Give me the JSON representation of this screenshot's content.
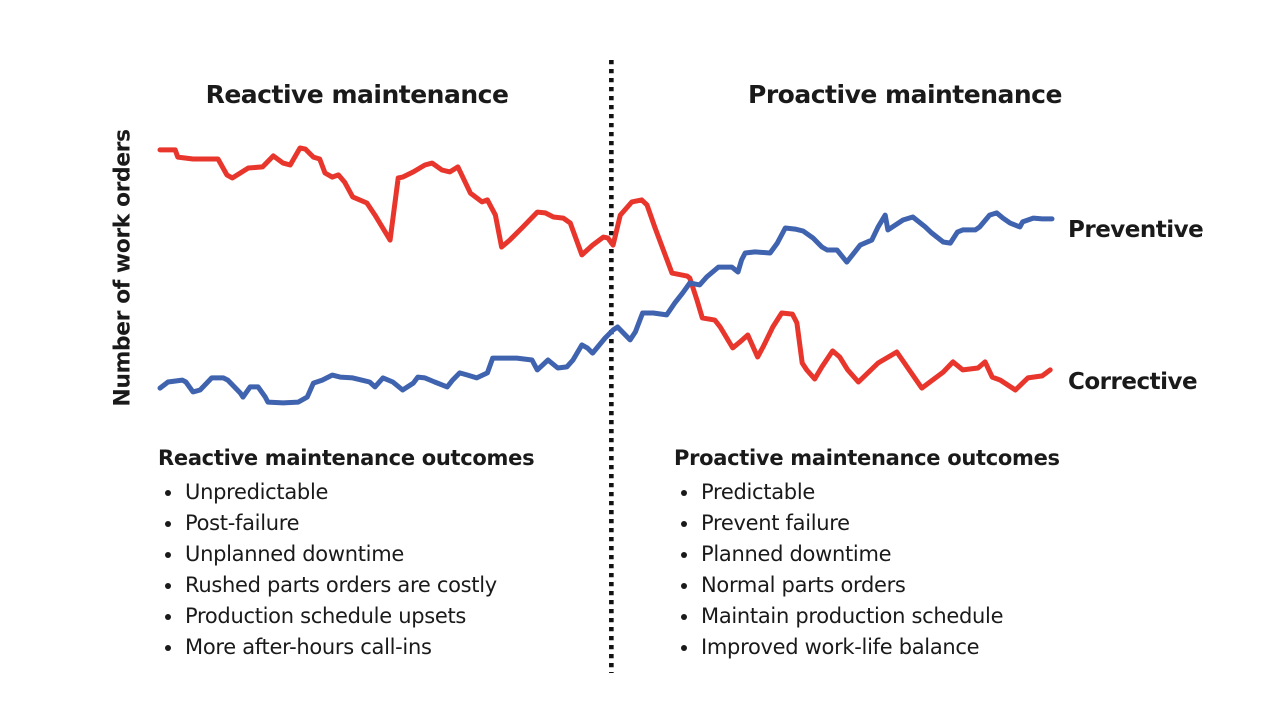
{
  "page": {
    "background": "#ffffff",
    "text_color": "#1a1a1a"
  },
  "header": {
    "left_phase": "Reactive maintenance",
    "right_phase": "Proactive maintenance"
  },
  "y_axis_label": "Number of work orders",
  "series_labels": {
    "preventive": "Preventive",
    "corrective": "Corrective"
  },
  "colors": {
    "corrective_red": "#e8362d",
    "preventive_blue": "#3f63ae",
    "divider_dots": "#111111"
  },
  "lists": {
    "left": {
      "heading": "Reactive maintenance outcomes",
      "items": [
        "Unpredictable",
        "Post-failure",
        "Unplanned downtime",
        "Rushed parts orders are costly",
        "Production schedule upsets",
        "More after-hours call-ins"
      ]
    },
    "right": {
      "heading": "Proactive maintenance outcomes",
      "items": [
        "Predictable",
        "Prevent failure",
        "Planned downtime",
        "Normal parts orders",
        "Maintain production schedule",
        "Improved work-life balance"
      ]
    }
  },
  "chart_data": {
    "type": "line",
    "title": "",
    "xlabel": "",
    "ylabel": "Number of work orders",
    "x_range": [
      0,
      100
    ],
    "y_range": [
      0,
      100
    ],
    "grid": false,
    "axes_visible": false,
    "legend_position": "right-inline",
    "divider": {
      "x": 50.6,
      "style": "dotted",
      "label_left": "Reactive maintenance",
      "label_right": "Proactive maintenance"
    },
    "series": [
      {
        "name": "Corrective",
        "color": "#e8362d",
        "points": [
          [
            0,
            96.4
          ],
          [
            1.7,
            96.4
          ],
          [
            2.0,
            93.8
          ],
          [
            3.7,
            93.1
          ],
          [
            6.5,
            93.1
          ],
          [
            7.5,
            87.3
          ],
          [
            8.1,
            86.2
          ],
          [
            9.9,
            89.8
          ],
          [
            11.5,
            90.2
          ],
          [
            12.7,
            94.2
          ],
          [
            13.8,
            91.6
          ],
          [
            14.6,
            90.9
          ],
          [
            15.7,
            97.1
          ],
          [
            16.3,
            96.7
          ],
          [
            17.2,
            93.8
          ],
          [
            17.9,
            93.1
          ],
          [
            18.5,
            88.0
          ],
          [
            19.3,
            86.5
          ],
          [
            20.0,
            87.3
          ],
          [
            20.7,
            84.7
          ],
          [
            21.6,
            79.3
          ],
          [
            23.2,
            77.1
          ],
          [
            24.1,
            72.7
          ],
          [
            25.8,
            63.6
          ],
          [
            26.7,
            86.2
          ],
          [
            27.2,
            86.5
          ],
          [
            28.4,
            88.4
          ],
          [
            29.7,
            90.9
          ],
          [
            30.5,
            91.6
          ],
          [
            31.6,
            89.1
          ],
          [
            32.5,
            88.4
          ],
          [
            33.4,
            90.2
          ],
          [
            34.8,
            80.7
          ],
          [
            36.1,
            77.5
          ],
          [
            36.7,
            78.2
          ],
          [
            37.6,
            72.7
          ],
          [
            38.3,
            61.1
          ],
          [
            39.2,
            63.6
          ],
          [
            40.7,
            68.4
          ],
          [
            42.3,
            73.8
          ],
          [
            43.2,
            73.5
          ],
          [
            44.1,
            72.0
          ],
          [
            45.2,
            71.6
          ],
          [
            46.0,
            69.8
          ],
          [
            47.3,
            58.2
          ],
          [
            48.5,
            61.8
          ],
          [
            49.7,
            64.7
          ],
          [
            50.2,
            64.4
          ],
          [
            50.8,
            61.8
          ],
          [
            51.6,
            72.7
          ],
          [
            52.9,
            77.5
          ],
          [
            54.0,
            78.2
          ],
          [
            54.6,
            76.4
          ],
          [
            55.5,
            68.0
          ],
          [
            56.3,
            61.1
          ],
          [
            57.4,
            51.6
          ],
          [
            59.1,
            50.5
          ],
          [
            59.4,
            49.8
          ],
          [
            60.2,
            41.8
          ],
          [
            60.8,
            35.3
          ],
          [
            62.2,
            34.5
          ],
          [
            62.8,
            32.0
          ],
          [
            64.2,
            24.4
          ],
          [
            65.0,
            26.5
          ],
          [
            65.9,
            29.1
          ],
          [
            66.5,
            24.7
          ],
          [
            67.0,
            21.1
          ],
          [
            67.6,
            24.7
          ],
          [
            68.7,
            32.0
          ],
          [
            69.7,
            37.1
          ],
          [
            70.9,
            36.7
          ],
          [
            71.4,
            33.5
          ],
          [
            72.0,
            18.9
          ],
          [
            72.5,
            16.4
          ],
          [
            73.4,
            13.1
          ],
          [
            74.2,
            17.5
          ],
          [
            75.4,
            23.3
          ],
          [
            76.2,
            21.1
          ],
          [
            77.1,
            16.4
          ],
          [
            78.3,
            12.0
          ],
          [
            80.5,
            18.9
          ],
          [
            82.6,
            22.9
          ],
          [
            85.4,
            9.8
          ],
          [
            87.8,
            15.6
          ],
          [
            88.9,
            19.3
          ],
          [
            90.0,
            16.4
          ],
          [
            91.7,
            17.1
          ],
          [
            92.5,
            19.3
          ],
          [
            93.3,
            13.8
          ],
          [
            94.2,
            12.7
          ],
          [
            95.9,
            9.1
          ],
          [
            97.3,
            13.5
          ],
          [
            98.9,
            14.2
          ],
          [
            99.8,
            16.4
          ]
        ]
      },
      {
        "name": "Preventive",
        "color": "#3f63ae",
        "points": [
          [
            0,
            9.8
          ],
          [
            0.9,
            12.0
          ],
          [
            2.5,
            12.7
          ],
          [
            2.9,
            12.0
          ],
          [
            3.7,
            8.4
          ],
          [
            4.5,
            9.1
          ],
          [
            5.8,
            13.5
          ],
          [
            7.1,
            13.5
          ],
          [
            7.6,
            12.7
          ],
          [
            9.0,
            8.0
          ],
          [
            9.3,
            6.5
          ],
          [
            10.1,
            10.2
          ],
          [
            11.0,
            10.2
          ],
          [
            11.8,
            6.5
          ],
          [
            12.1,
            4.7
          ],
          [
            13.8,
            4.4
          ],
          [
            15.5,
            4.7
          ],
          [
            16.5,
            6.5
          ],
          [
            17.2,
            11.6
          ],
          [
            18.2,
            12.7
          ],
          [
            19.3,
            14.5
          ],
          [
            20.2,
            13.8
          ],
          [
            21.6,
            13.5
          ],
          [
            22.6,
            12.7
          ],
          [
            23.5,
            12.0
          ],
          [
            24.1,
            10.2
          ],
          [
            25.0,
            13.5
          ],
          [
            26.1,
            12.0
          ],
          [
            27.2,
            9.1
          ],
          [
            28.4,
            11.6
          ],
          [
            28.9,
            13.8
          ],
          [
            29.7,
            13.5
          ],
          [
            30.8,
            12.0
          ],
          [
            32.2,
            10.2
          ],
          [
            32.8,
            12.7
          ],
          [
            33.6,
            15.3
          ],
          [
            34.5,
            14.5
          ],
          [
            35.5,
            13.5
          ],
          [
            36.7,
            15.3
          ],
          [
            37.3,
            20.7
          ],
          [
            40.0,
            20.7
          ],
          [
            41.7,
            20.0
          ],
          [
            42.3,
            16.4
          ],
          [
            42.9,
            18.2
          ],
          [
            43.5,
            20.0
          ],
          [
            44.6,
            17.1
          ],
          [
            45.6,
            17.5
          ],
          [
            46.3,
            20.0
          ],
          [
            47.3,
            25.5
          ],
          [
            47.9,
            24.4
          ],
          [
            48.5,
            22.5
          ],
          [
            49.9,
            28.0
          ],
          [
            50.8,
            30.9
          ],
          [
            51.3,
            32.0
          ],
          [
            52.7,
            27.3
          ],
          [
            53.3,
            30.2
          ],
          [
            54.1,
            37.1
          ],
          [
            55.3,
            37.1
          ],
          [
            56.8,
            36.4
          ],
          [
            57.7,
            40.7
          ],
          [
            58.6,
            44.4
          ],
          [
            59.4,
            48.0
          ],
          [
            60.5,
            47.3
          ],
          [
            61.3,
            50.2
          ],
          [
            62.6,
            53.8
          ],
          [
            64.1,
            53.8
          ],
          [
            64.8,
            52.0
          ],
          [
            65.2,
            56.4
          ],
          [
            65.6,
            58.9
          ],
          [
            66.7,
            59.3
          ],
          [
            68.4,
            58.9
          ],
          [
            69.2,
            62.5
          ],
          [
            70.1,
            68.0
          ],
          [
            71.2,
            67.6
          ],
          [
            72.1,
            66.9
          ],
          [
            73.2,
            64.4
          ],
          [
            74.2,
            61.1
          ],
          [
            74.8,
            60.0
          ],
          [
            75.9,
            60.0
          ],
          [
            77.0,
            55.6
          ],
          [
            78.5,
            61.8
          ],
          [
            79.8,
            63.6
          ],
          [
            80.5,
            68.4
          ],
          [
            81.3,
            72.7
          ],
          [
            81.6,
            67.3
          ],
          [
            83.3,
            70.9
          ],
          [
            84.4,
            72.0
          ],
          [
            85.8,
            68.4
          ],
          [
            86.5,
            66.2
          ],
          [
            87.8,
            62.9
          ],
          [
            88.6,
            62.5
          ],
          [
            89.4,
            66.5
          ],
          [
            90.0,
            67.3
          ],
          [
            91.4,
            67.3
          ],
          [
            91.9,
            68.4
          ],
          [
            93.0,
            72.7
          ],
          [
            93.8,
            73.5
          ],
          [
            94.5,
            71.6
          ],
          [
            95.3,
            69.8
          ],
          [
            96.4,
            68.4
          ],
          [
            96.7,
            70.2
          ],
          [
            97.9,
            71.6
          ],
          [
            98.9,
            71.3
          ],
          [
            100,
            71.3
          ]
        ]
      }
    ]
  }
}
